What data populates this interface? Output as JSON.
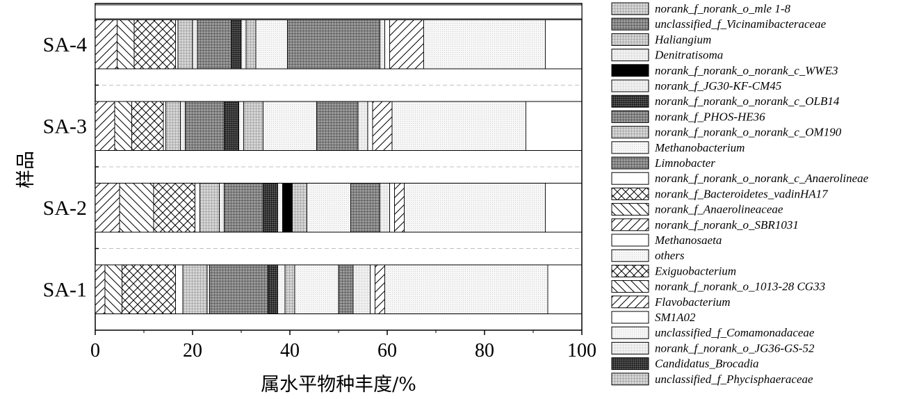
{
  "chart_data": {
    "type": "bar",
    "orientation": "horizontal",
    "stacked": true,
    "categories": [
      "SA-1",
      "SA-2",
      "SA-3",
      "SA-4"
    ],
    "xlabel": "属水平物种丰度/%",
    "ylabel": "样品",
    "xlim": [
      0,
      100
    ],
    "xticks": [
      0,
      20,
      40,
      60,
      80,
      100
    ],
    "legend_position": "right",
    "series": [
      {
        "name": "Flavobacterium",
        "pattern": "diag-right",
        "values": [
          2.0,
          5.0,
          4.0,
          4.5
        ]
      },
      {
        "name": "norank_f_norank_o_1013-28 CG33",
        "pattern": "diag-left",
        "values": [
          3.5,
          7.0,
          3.5,
          3.5
        ]
      },
      {
        "name": "Exiguobacterium",
        "pattern": "crosshatch",
        "values": [
          11.0,
          8.5,
          6.5,
          8.5
        ]
      },
      {
        "name": "SM1A02",
        "pattern": "white",
        "values": [
          1.5,
          1.0,
          0.5,
          0.5
        ]
      },
      {
        "name": "unclassified_f_Phycisphaeraceae",
        "pattern": "grid-medium",
        "values": [
          5.0,
          4.0,
          3.0,
          3.0
        ]
      },
      {
        "name": "norank_f_norank_o_JG36-GS-52",
        "pattern": "grid-light",
        "values": [
          0.5,
          1.0,
          1.0,
          1.0
        ]
      },
      {
        "name": "Limnobacter",
        "pattern": "grid-dark",
        "values": [
          12.0,
          8.0,
          8.0,
          7.0
        ]
      },
      {
        "name": "Candidatus_Brocadia",
        "pattern": "grid-dense",
        "values": [
          2.0,
          3.0,
          3.0,
          2.0
        ]
      },
      {
        "name": "unclassified_f_Comamonadaceae",
        "pattern": "dots-light",
        "values": [
          1.5,
          1.0,
          1.0,
          1.0
        ]
      },
      {
        "name": "norank_f_norank_o_WWE3",
        "pattern": "solid-black",
        "values": [
          0.0,
          2.0,
          0.0,
          0.0
        ]
      },
      {
        "name": "norank_f_norank_o_norank_c_OM190",
        "pattern": "grid-medium",
        "values": [
          2.0,
          3.0,
          4.0,
          2.0
        ]
      },
      {
        "name": "Methanobacterium",
        "pattern": "dots-light",
        "values": [
          9.0,
          9.0,
          11.0,
          6.5
        ]
      },
      {
        "name": "norank_f_PHOS-HE36",
        "pattern": "grid-dark",
        "values": [
          3.0,
          6.0,
          8.5,
          19.0
        ]
      },
      {
        "name": "Denitratisoma",
        "pattern": "grid-light",
        "values": [
          3.5,
          2.0,
          2.0,
          1.0
        ]
      },
      {
        "name": "norank_f_norank_o_norank_c_Anaerolineae",
        "pattern": "white",
        "values": [
          1.0,
          1.0,
          1.0,
          1.0
        ]
      },
      {
        "name": "norank_f_norank_o_SBR1031",
        "pattern": "diag-right",
        "values": [
          2.0,
          2.0,
          4.0,
          7.0
        ]
      },
      {
        "name": "others",
        "pattern": "dots-light",
        "values": [
          33.5,
          29.0,
          27.5,
          25.0
        ]
      }
    ],
    "legend": [
      {
        "label": "norank_f_norank_o_mle 1-8",
        "pattern": "grid-medium"
      },
      {
        "label": "unclassified_f_Vicinamibacteraceae",
        "pattern": "grid-dark"
      },
      {
        "label": "Haliangium",
        "pattern": "grid-medium"
      },
      {
        "label": "Denitratisoma",
        "pattern": "grid-light"
      },
      {
        "label": "norank_f_norank_o_norank_c_WWE3",
        "pattern": "solid-black"
      },
      {
        "label": "norank_f_JG30-KF-CM45",
        "pattern": "grid-light"
      },
      {
        "label": "norank_f_norank_o_norank_c_OLB14",
        "pattern": "grid-dense"
      },
      {
        "label": "norank_f_PHOS-HE36",
        "pattern": "grid-dark"
      },
      {
        "label": "norank_f_norank_o_norank_c_OM190",
        "pattern": "grid-medium"
      },
      {
        "label": "Methanobacterium",
        "pattern": "dots-light"
      },
      {
        "label": "Limnobacter",
        "pattern": "grid-dark"
      },
      {
        "label": "norank_f_norank_o_norank_c_Anaerolineae",
        "pattern": "white"
      },
      {
        "label": "norank_f_Bacteroidetes_vadinHA17",
        "pattern": "crosshatch"
      },
      {
        "label": "norank_f_Anaerolineaceae",
        "pattern": "diag-left"
      },
      {
        "label": "norank_f_norank_o_SBR1031",
        "pattern": "diag-right"
      },
      {
        "label": "Methanosaeta",
        "pattern": "white"
      },
      {
        "label": "others",
        "pattern": "dots-light"
      },
      {
        "label": "Exiguobacterium",
        "pattern": "crosshatch"
      },
      {
        "label": "norank_f_norank_o_1013-28 CG33",
        "pattern": "diag-left"
      },
      {
        "label": "Flavobacterium",
        "pattern": "diag-right"
      },
      {
        "label": "SM1A02",
        "pattern": "white"
      },
      {
        "label": "unclassified_f_Comamonadaceae",
        "pattern": "dots-light"
      },
      {
        "label": "norank_f_norank_o_JG36-GS-52",
        "pattern": "grid-light"
      },
      {
        "label": "Candidatus_Brocadia",
        "pattern": "grid-dense"
      },
      {
        "label": "unclassified_f_Phycisphaeraceae",
        "pattern": "grid-medium"
      }
    ]
  }
}
